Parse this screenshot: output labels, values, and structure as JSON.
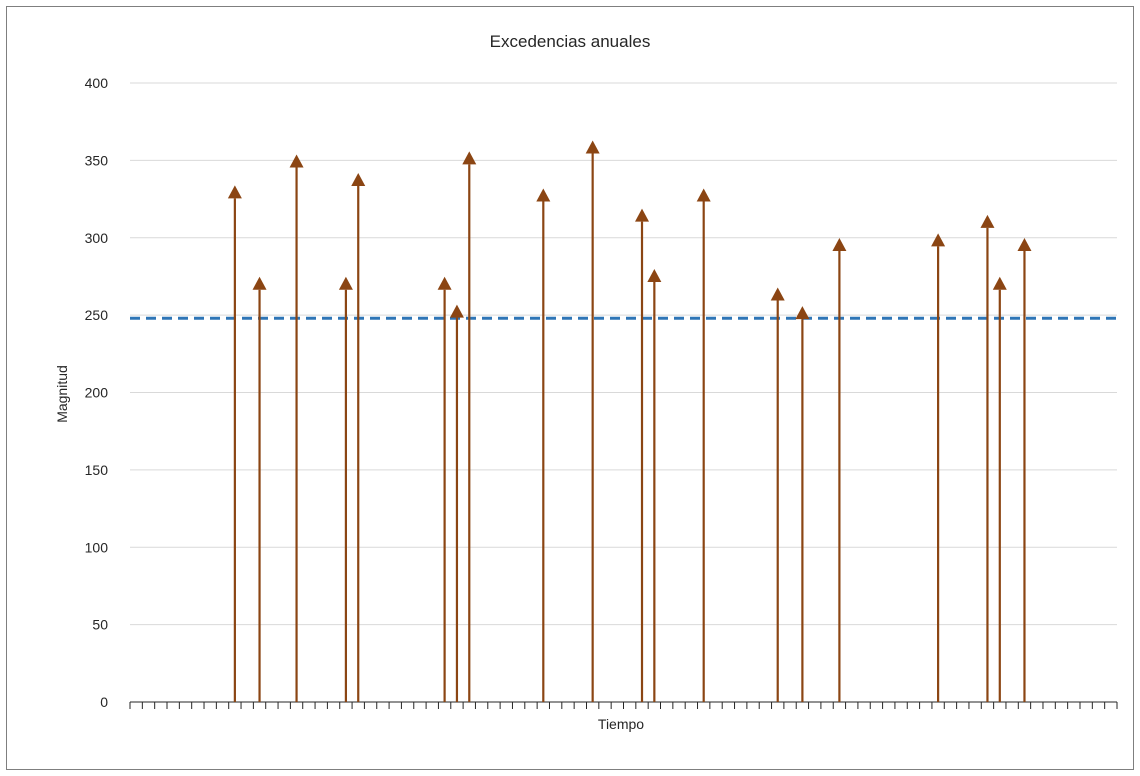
{
  "chart_data": {
    "type": "scatter",
    "title": "Excedencias anuales",
    "xlabel": "Tiempo",
    "ylabel": "Magnitud",
    "ylim": [
      0,
      400
    ],
    "yticks": [
      "0",
      "50",
      "100",
      "150",
      "200",
      "250",
      "300",
      "350",
      "400"
    ],
    "grid": true,
    "legend": "none",
    "threshold": {
      "value": 248,
      "style": "dashed",
      "color": "#2E75B6"
    },
    "x_slots": 80,
    "series": [
      {
        "color": "#8B4513",
        "marker": "triangle",
        "points": [
          {
            "x": 8,
            "y": 328
          },
          {
            "x": 10,
            "y": 269
          },
          {
            "x": 13,
            "y": 348
          },
          {
            "x": 17,
            "y": 269
          },
          {
            "x": 18,
            "y": 336
          },
          {
            "x": 25,
            "y": 269
          },
          {
            "x": 26,
            "y": 251
          },
          {
            "x": 27,
            "y": 350
          },
          {
            "x": 33,
            "y": 326
          },
          {
            "x": 37,
            "y": 357
          },
          {
            "x": 41,
            "y": 313
          },
          {
            "x": 42,
            "y": 274
          },
          {
            "x": 46,
            "y": 326
          },
          {
            "x": 52,
            "y": 262
          },
          {
            "x": 54,
            "y": 250
          },
          {
            "x": 57,
            "y": 294
          },
          {
            "x": 65,
            "y": 297
          },
          {
            "x": 69,
            "y": 309
          },
          {
            "x": 70,
            "y": 269
          },
          {
            "x": 72,
            "y": 294
          }
        ]
      }
    ]
  }
}
